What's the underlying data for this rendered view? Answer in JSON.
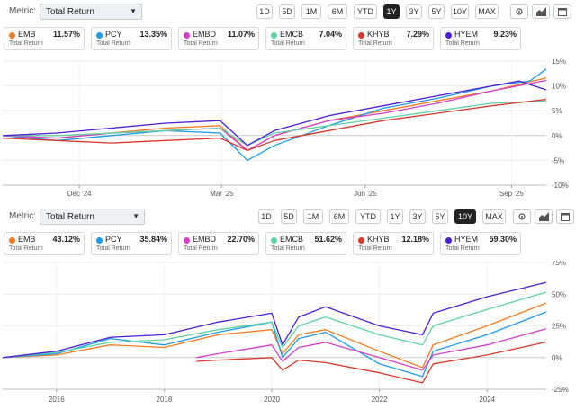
{
  "panels": [
    {
      "metric_label": "Metric:",
      "metric_value": "Total Return",
      "ranges": [
        "1D",
        "5D",
        "1M",
        "6M",
        "YTD",
        "1Y",
        "3Y",
        "5Y",
        "10Y",
        "MAX"
      ],
      "active_range": "1Y",
      "legend": [
        {
          "ticker": "EMB",
          "value": "11.57%",
          "sub": "Total Return",
          "color": "#f47b20"
        },
        {
          "ticker": "PCY",
          "value": "13.35%",
          "sub": "Total Return",
          "color": "#1e9be8"
        },
        {
          "ticker": "EMBD",
          "value": "11.07%",
          "sub": "Total Return",
          "color": "#d53fc9"
        },
        {
          "ticker": "EMCB",
          "value": "7.04%",
          "sub": "Total Return",
          "color": "#5fd3a4"
        },
        {
          "ticker": "KHYB",
          "value": "7.29%",
          "sub": "Total Return",
          "color": "#d9382c"
        },
        {
          "ticker": "HYEM",
          "value": "9.23%",
          "sub": "Total Return",
          "color": "#4b1fd6"
        }
      ]
    },
    {
      "metric_label": "Metric:",
      "metric_value": "Total Return",
      "ranges": [
        "1D",
        "5D",
        "1M",
        "6M",
        "YTD",
        "1Y",
        "3Y",
        "5Y",
        "10Y",
        "MAX"
      ],
      "active_range": "10Y",
      "legend": [
        {
          "ticker": "EMB",
          "value": "43.12%",
          "sub": "Total Return",
          "color": "#f47b20"
        },
        {
          "ticker": "PCY",
          "value": "35.84%",
          "sub": "Total Return",
          "color": "#1e9be8"
        },
        {
          "ticker": "EMBD",
          "value": "22.70%",
          "sub": "Total Return",
          "color": "#d53fc9"
        },
        {
          "ticker": "EMCB",
          "value": "51.62%",
          "sub": "Total Return",
          "color": "#5fd3a4"
        },
        {
          "ticker": "KHYB",
          "value": "12.18%",
          "sub": "Total Return",
          "color": "#d9382c"
        },
        {
          "ticker": "HYEM",
          "value": "59.30%",
          "sub": "Total Return",
          "color": "#4b1fd6"
        }
      ]
    }
  ],
  "icons": [
    "settings-gear-icon",
    "chart-type-icon",
    "calendar-icon"
  ],
  "chart_data": [
    {
      "type": "line",
      "y_unit": "%",
      "x_domain": [
        0,
        1
      ],
      "ylim": [
        -10,
        15
      ],
      "y_ticks": [
        15,
        10,
        5,
        0,
        -5,
        -10
      ],
      "x_tick_labels": [
        {
          "label": "Dec '24",
          "t": 0.141
        },
        {
          "label": "Mar '25",
          "t": 0.403
        },
        {
          "label": "Jun '25",
          "t": 0.667
        },
        {
          "label": "Sep '25",
          "t": 0.936
        }
      ],
      "grid": true,
      "series": [
        {
          "name": "EMB",
          "color": "#f47b20",
          "points": [
            [
              0,
              0
            ],
            [
              0.1,
              -0.5
            ],
            [
              0.2,
              0.5
            ],
            [
              0.3,
              1.5
            ],
            [
              0.4,
              2
            ],
            [
              0.45,
              -3
            ],
            [
              0.5,
              0
            ],
            [
              0.6,
              3
            ],
            [
              0.7,
              5
            ],
            [
              0.8,
              7
            ],
            [
              0.9,
              9
            ],
            [
              1,
              11.6
            ]
          ]
        },
        {
          "name": "PCY",
          "color": "#1e9be8",
          "points": [
            [
              0,
              0
            ],
            [
              0.1,
              -1
            ],
            [
              0.2,
              0
            ],
            [
              0.3,
              1
            ],
            [
              0.4,
              0.5
            ],
            [
              0.45,
              -5
            ],
            [
              0.5,
              -2
            ],
            [
              0.6,
              2
            ],
            [
              0.7,
              5.5
            ],
            [
              0.8,
              7.5
            ],
            [
              0.9,
              10
            ],
            [
              0.97,
              11
            ],
            [
              1,
              13.4
            ]
          ]
        },
        {
          "name": "EMBD",
          "color": "#d53fc9",
          "points": [
            [
              0,
              0
            ],
            [
              0.1,
              -0.5
            ],
            [
              0.2,
              0.5
            ],
            [
              0.3,
              1
            ],
            [
              0.4,
              1.5
            ],
            [
              0.45,
              -3
            ],
            [
              0.5,
              0
            ],
            [
              0.6,
              3
            ],
            [
              0.7,
              4.5
            ],
            [
              0.8,
              6.5
            ],
            [
              0.9,
              9
            ],
            [
              1,
              11.1
            ]
          ]
        },
        {
          "name": "EMCB",
          "color": "#5fd3a4",
          "points": [
            [
              0,
              0
            ],
            [
              0.1,
              0
            ],
            [
              0.2,
              0.5
            ],
            [
              0.3,
              1
            ],
            [
              0.4,
              1.5
            ],
            [
              0.45,
              -2
            ],
            [
              0.5,
              0.5
            ],
            [
              0.6,
              2
            ],
            [
              0.7,
              3.5
            ],
            [
              0.8,
              5
            ],
            [
              0.9,
              6.5
            ],
            [
              1,
              7.0
            ]
          ]
        },
        {
          "name": "KHYB",
          "color": "#d9382c",
          "points": [
            [
              0,
              -0.5
            ],
            [
              0.1,
              -1
            ],
            [
              0.2,
              -1.5
            ],
            [
              0.3,
              -1
            ],
            [
              0.4,
              -0.5
            ],
            [
              0.45,
              -3
            ],
            [
              0.5,
              -1
            ],
            [
              0.6,
              1
            ],
            [
              0.7,
              3
            ],
            [
              0.8,
              4.5
            ],
            [
              0.9,
              6
            ],
            [
              1,
              7.3
            ]
          ]
        },
        {
          "name": "HYEM",
          "color": "#4b1fd6",
          "points": [
            [
              0,
              0
            ],
            [
              0.1,
              0.5
            ],
            [
              0.2,
              1.5
            ],
            [
              0.3,
              2.5
            ],
            [
              0.4,
              3
            ],
            [
              0.45,
              -2
            ],
            [
              0.5,
              1
            ],
            [
              0.6,
              4
            ],
            [
              0.7,
              6
            ],
            [
              0.8,
              8
            ],
            [
              0.9,
              10
            ],
            [
              0.95,
              11
            ],
            [
              1,
              9.2
            ]
          ]
        }
      ]
    },
    {
      "type": "line",
      "y_unit": "%",
      "x_domain": [
        2015,
        2025.1
      ],
      "ylim": [
        -25,
        75
      ],
      "y_ticks": [
        75,
        50,
        25,
        0,
        -25
      ],
      "x_ticks": [
        2016,
        2018,
        2020,
        2022,
        2024
      ],
      "grid": true,
      "series": [
        {
          "name": "EMB",
          "color": "#f47b20",
          "points": [
            [
              2015,
              0
            ],
            [
              2016,
              2
            ],
            [
              2017,
              10
            ],
            [
              2018,
              8
            ],
            [
              2019,
              18
            ],
            [
              2020,
              22
            ],
            [
              2020.2,
              3
            ],
            [
              2020.5,
              18
            ],
            [
              2021,
              22
            ],
            [
              2022,
              5
            ],
            [
              2022.8,
              -8
            ],
            [
              2023,
              10
            ],
            [
              2024,
              25
            ],
            [
              2025.1,
              43
            ]
          ]
        },
        {
          "name": "PCY",
          "color": "#1e9be8",
          "points": [
            [
              2015,
              0
            ],
            [
              2016,
              3
            ],
            [
              2017,
              15
            ],
            [
              2018,
              10
            ],
            [
              2019,
              20
            ],
            [
              2020,
              28
            ],
            [
              2020.2,
              0
            ],
            [
              2020.5,
              15
            ],
            [
              2021,
              20
            ],
            [
              2022,
              -5
            ],
            [
              2022.8,
              -15
            ],
            [
              2023,
              5
            ],
            [
              2024,
              18
            ],
            [
              2025.1,
              36
            ]
          ]
        },
        {
          "name": "EMBD",
          "color": "#d53fc9",
          "points": [
            [
              2018.6,
              0
            ],
            [
              2019,
              3
            ],
            [
              2020,
              10
            ],
            [
              2020.2,
              -3
            ],
            [
              2020.5,
              8
            ],
            [
              2021,
              12
            ],
            [
              2022,
              0
            ],
            [
              2022.8,
              -10
            ],
            [
              2023,
              2
            ],
            [
              2024,
              10
            ],
            [
              2025.1,
              22.7
            ]
          ]
        },
        {
          "name": "EMCB",
          "color": "#5fd3a4",
          "points": [
            [
              2015,
              0
            ],
            [
              2016,
              4
            ],
            [
              2017,
              12
            ],
            [
              2018,
              14
            ],
            [
              2019,
              22
            ],
            [
              2020,
              28
            ],
            [
              2020.2,
              8
            ],
            [
              2020.5,
              25
            ],
            [
              2021,
              32
            ],
            [
              2022,
              18
            ],
            [
              2022.8,
              10
            ],
            [
              2023,
              25
            ],
            [
              2024,
              38
            ],
            [
              2025.1,
              51.6
            ]
          ]
        },
        {
          "name": "KHYB",
          "color": "#d9382c",
          "points": [
            [
              2018.6,
              -3
            ],
            [
              2019,
              -2
            ],
            [
              2020,
              0
            ],
            [
              2020.2,
              -10
            ],
            [
              2020.5,
              -2
            ],
            [
              2021,
              -4
            ],
            [
              2022,
              -12
            ],
            [
              2022.8,
              -20
            ],
            [
              2023,
              -5
            ],
            [
              2024,
              2
            ],
            [
              2025.1,
              12.2
            ]
          ]
        },
        {
          "name": "HYEM",
          "color": "#4b1fd6",
          "points": [
            [
              2015,
              0
            ],
            [
              2016,
              5
            ],
            [
              2017,
              16
            ],
            [
              2018,
              18
            ],
            [
              2019,
              28
            ],
            [
              2020,
              35
            ],
            [
              2020.2,
              10
            ],
            [
              2020.5,
              32
            ],
            [
              2021,
              40
            ],
            [
              2022,
              25
            ],
            [
              2022.8,
              18
            ],
            [
              2023,
              35
            ],
            [
              2024,
              48
            ],
            [
              2025.1,
              59.3
            ]
          ]
        }
      ]
    }
  ]
}
